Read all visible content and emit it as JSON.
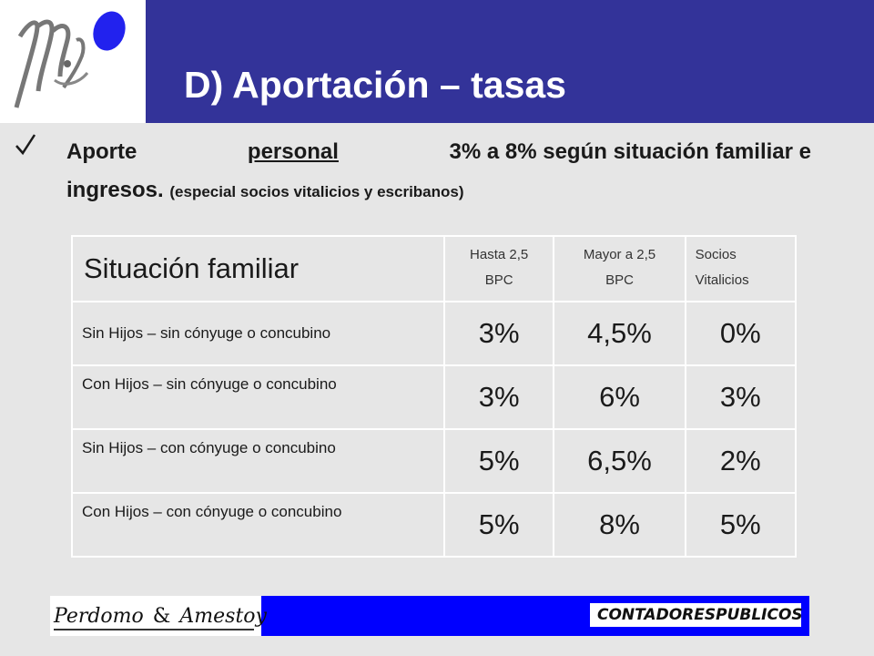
{
  "title": "D) Aportación – tasas",
  "bullet": {
    "prefix": "Aporte ",
    "underlined": "personal",
    "rest_line1": "3% a 8% según situación familiar e",
    "line2": "ingresos. ",
    "note": "(especial socios vitalicios y escribanos)"
  },
  "table": {
    "header": {
      "label": "Situación familiar",
      "col1_line1": "Hasta 2,5",
      "col1_line2": "BPC",
      "col2_line1": "Mayor a 2,5",
      "col2_line2": "BPC",
      "col3_line1": "Socios",
      "col3_line2": "Vitalicios"
    },
    "rows": [
      {
        "label": "Sin Hijos – sin cónyuge o concubino",
        "hasta": "3%",
        "mayor": "4,5%",
        "socios": "0%"
      },
      {
        "label": "Con Hijos – sin cónyuge o concubino",
        "hasta": "3%",
        "mayor": "6%",
        "socios": "3%"
      },
      {
        "label": "Sin Hijos – con cónyuge o concubino",
        "hasta": "5%",
        "mayor": "6,5%",
        "socios": "2%"
      },
      {
        "label": "Con Hijos – con cónyuge o concubino",
        "hasta": "5%",
        "mayor": "8%",
        "socios": "5%"
      }
    ]
  },
  "footer": {
    "logo_text_1": "Perdomo",
    "logo_amp": "&",
    "logo_text_2": "Amestoy",
    "right_word_1": "CONTADORES",
    "right_word_2": "PUBLICOS"
  },
  "colors": {
    "title_bar": "#333399",
    "footer_bar": "#0000ff",
    "logo_dot": "#2222ee"
  }
}
